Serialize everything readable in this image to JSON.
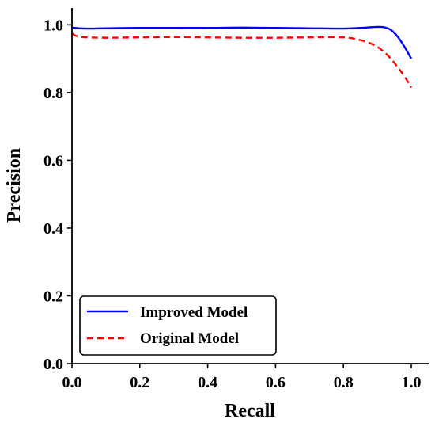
{
  "chart_data": {
    "type": "line",
    "title": "",
    "xlabel": "Recall",
    "ylabel": "Precision",
    "xlim": [
      0.0,
      1.0
    ],
    "ylim": [
      0.0,
      1.05
    ],
    "grid": false,
    "legend_position": "bottom-left",
    "x_ticks": [
      "0.0",
      "0.2",
      "0.4",
      "0.6",
      "0.8",
      "1.0"
    ],
    "y_ticks": [
      "0.0",
      "0.2",
      "0.4",
      "0.6",
      "0.8",
      "1.0"
    ],
    "x_tick_values": [
      0.0,
      0.2,
      0.4,
      0.6,
      0.8,
      1.0
    ],
    "y_tick_values": [
      0.0,
      0.2,
      0.4,
      0.6,
      0.8,
      1.0
    ],
    "series": [
      {
        "name": "Improved Model",
        "color": "#0000ff",
        "style": "solid",
        "x": [
          0.0,
          0.02,
          0.05,
          0.1,
          0.2,
          0.3,
          0.4,
          0.5,
          0.6,
          0.7,
          0.8,
          0.85,
          0.88,
          0.9,
          0.92,
          0.94,
          0.96,
          0.98,
          1.0
        ],
        "y": [
          0.992,
          0.99,
          0.989,
          0.99,
          0.991,
          0.991,
          0.991,
          0.992,
          0.991,
          0.99,
          0.989,
          0.991,
          0.993,
          0.994,
          0.993,
          0.985,
          0.965,
          0.935,
          0.9
        ]
      },
      {
        "name": "Original Model",
        "color": "#ff0000",
        "style": "dashed",
        "x": [
          0.0,
          0.01,
          0.03,
          0.05,
          0.1,
          0.2,
          0.3,
          0.4,
          0.5,
          0.6,
          0.7,
          0.8,
          0.85,
          0.88,
          0.9,
          0.92,
          0.94,
          0.96,
          0.98,
          1.0
        ],
        "y": [
          0.975,
          0.968,
          0.964,
          0.963,
          0.962,
          0.963,
          0.964,
          0.963,
          0.962,
          0.962,
          0.963,
          0.963,
          0.955,
          0.945,
          0.935,
          0.92,
          0.9,
          0.875,
          0.848,
          0.815
        ]
      }
    ]
  }
}
